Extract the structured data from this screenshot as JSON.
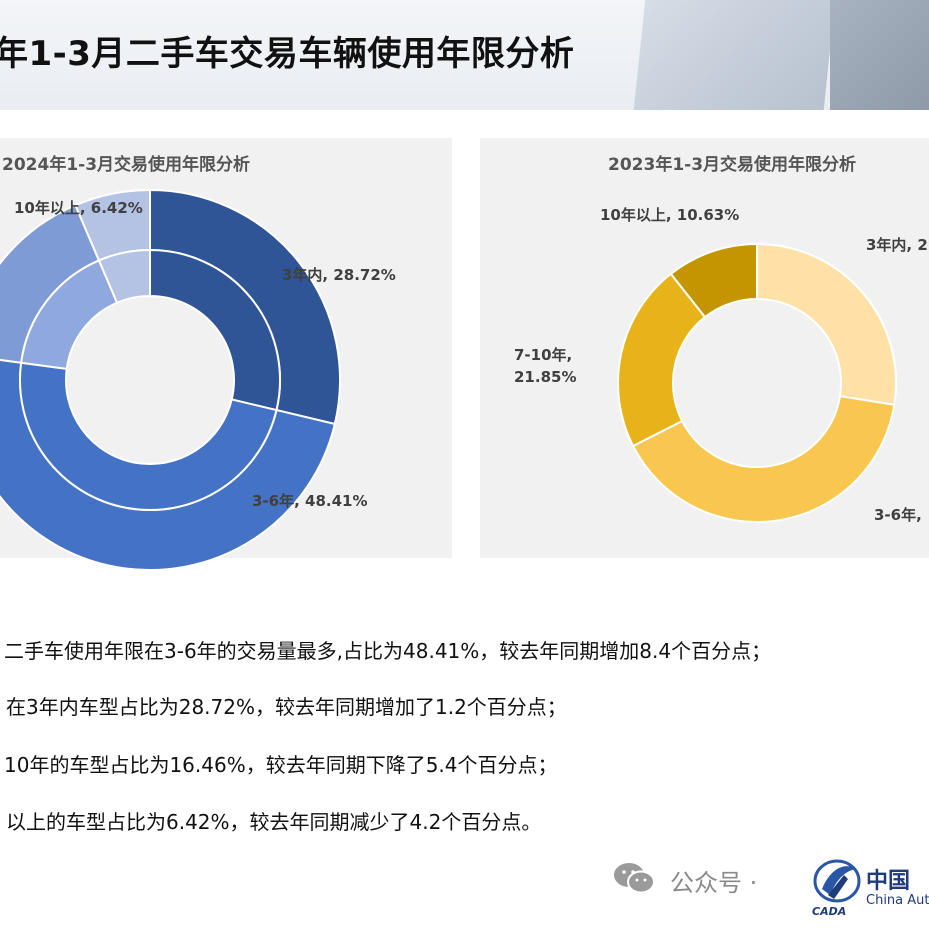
{
  "page": {
    "title": "年1-3月二手车交易车辆使用年限分析"
  },
  "chart_data": [
    {
      "type": "pie",
      "title": "2024年1-3月交易使用年限分析",
      "categories": [
        "3年内",
        "3-6年",
        "7-10年",
        "10年以上"
      ],
      "values": [
        28.72,
        48.41,
        16.46,
        6.42
      ],
      "labels": [
        "3年内, 28.72%",
        "3-6年, 48.41%",
        "10年以上, 6.42%"
      ],
      "colors": [
        "#2f5597",
        "#4472c4",
        "#7f9bd6",
        "#b4c2e4"
      ],
      "inner_colors": [
        "#2f5597",
        "#4472c4",
        "#8fa8dd",
        "#b4c2e4"
      ],
      "ring": "double"
    },
    {
      "type": "pie",
      "title": "2023年1-3月交易使用年限分析",
      "categories": [
        "3年内",
        "3-6年",
        "7-10年",
        "10年以上"
      ],
      "values": [
        27.5,
        40.0,
        21.85,
        10.63
      ],
      "labels": [
        "3年内, 2",
        "3-6年,",
        "7-10年,",
        "21.85%",
        "10年以上, 10.63%"
      ],
      "colors": [
        "#ffe1a8",
        "#f9c74f",
        "#e8b318",
        "#c59500"
      ]
    }
  ],
  "summary": [
    "二手车使用年限在3-6年的交易量最多,占比为48.41%，较去年同期增加8.4个百分点；",
    "在3年内车型占比为28.72%，较去年同期增加了1.2个百分点；",
    "10年的车型占比为16.46%，较去年同期下降了5.4个百分点；",
    "以上的车型占比为6.42%，较去年同期减少了4.2个百分点。"
  ],
  "footer": {
    "text": "公众号 ·",
    "logo_cn": "中国",
    "logo_en": "China Auto"
  }
}
